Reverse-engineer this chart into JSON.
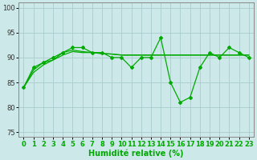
{
  "x": [
    0,
    1,
    2,
    3,
    4,
    5,
    6,
    7,
    8,
    9,
    10,
    11,
    12,
    13,
    14,
    15,
    16,
    17,
    18,
    19,
    20,
    21,
    22,
    23
  ],
  "line_main": [
    84,
    88,
    89,
    90,
    91,
    92,
    92,
    91,
    91,
    90,
    90,
    88,
    90,
    90,
    94,
    85,
    81,
    82,
    88,
    91,
    90,
    92,
    91,
    90
  ],
  "line_trend1": [
    84,
    87.5,
    89,
    89.5,
    90.5,
    91.2,
    91,
    91,
    90.8,
    90.7,
    90.5,
    90.5,
    90.5,
    90.5,
    90.5,
    90.5,
    90.5,
    90.5,
    90.5,
    90.5,
    90.5,
    90.5,
    90.5,
    90.5
  ],
  "line_trend2": [
    84,
    87,
    88.5,
    89.5,
    91,
    91.5,
    91.2,
    91,
    90.8,
    90.7,
    90.5,
    90.5,
    90.5,
    90.5,
    90.5,
    90.5,
    90.5,
    90.5,
    90.5,
    90.5,
    90.5,
    90.5,
    90.5,
    90.5
  ],
  "xlabel": "Humidité relative (%)",
  "ylim": [
    74,
    101
  ],
  "yticks": [
    75,
    80,
    85,
    90,
    95,
    100
  ],
  "xticks": [
    0,
    1,
    2,
    3,
    4,
    5,
    6,
    7,
    8,
    9,
    10,
    11,
    12,
    13,
    14,
    15,
    16,
    17,
    18,
    19,
    20,
    21,
    22,
    23
  ],
  "line_color": "#00aa00",
  "bg_color": "#cce8e8",
  "grid_color": "#aacccc",
  "marker": "D",
  "marker_size": 2.0,
  "linewidth": 0.9,
  "xlabel_fontsize": 7,
  "tick_fontsize": 6,
  "fig_width": 3.2,
  "fig_height": 2.0,
  "dpi": 100
}
